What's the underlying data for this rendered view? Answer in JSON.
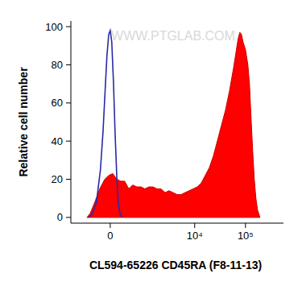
{
  "chart_data": {
    "type": "line",
    "x_label": "CL594-65226 CD45RA (F8-11-13)",
    "y_label": "Relative cell number",
    "watermark": "WWW.PTGLAB.COM",
    "log": "x",
    "xlim": [
      -1260,
      560000
    ],
    "ylim": [
      -3,
      103
    ],
    "xticks": [
      0,
      {
        "value": 10000,
        "label": "10⁴"
      },
      {
        "value": 100000,
        "label": "10⁵"
      }
    ],
    "yticks": [
      0,
      20,
      40,
      60,
      80,
      100
    ],
    "series": [
      {
        "type": "area",
        "color": "#ff0000",
        "x": [
          -550,
          -455,
          -330,
          -215,
          -110,
          -30,
          50,
          130,
          215,
          305,
          410,
          525,
          660,
          820,
          1000,
          1220,
          1470,
          1780,
          2140,
          2590,
          3110,
          3740,
          4490,
          5390,
          6470,
          7770,
          9340,
          11200,
          13450,
          16140,
          19360,
          23230,
          27880,
          33450,
          40190,
          48200,
          57860,
          64550,
          72040,
          77470,
          83300,
          89570,
          99920,
          111530,
          119930,
          128980,
          138720,
          149160,
          160430,
          172520,
          192700
        ],
        "values": [
          0,
          2,
          8,
          15,
          20,
          22,
          23,
          20,
          19,
          19,
          15,
          17,
          16,
          16,
          15,
          16,
          16,
          15,
          15,
          13,
          14,
          13,
          12,
          12,
          13,
          14,
          15,
          16,
          18,
          22,
          26,
          32,
          40,
          48,
          56,
          66,
          78,
          86,
          94,
          97,
          96,
          92,
          88,
          80,
          70,
          52,
          35,
          20,
          10,
          4,
          0
        ]
      },
      {
        "type": "line",
        "color": "#2a2aa8",
        "x": [
          -500,
          -390,
          -290,
          -200,
          -145,
          -95,
          -65,
          -30,
          0,
          30,
          65,
          95,
          130,
          160,
          200,
          250
        ],
        "values": [
          0,
          2,
          8,
          25,
          45,
          70,
          85,
          96,
          98,
          92,
          70,
          45,
          22,
          8,
          2,
          0
        ]
      }
    ]
  }
}
